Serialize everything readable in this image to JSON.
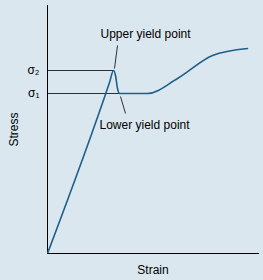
{
  "chart_data": {
    "type": "line",
    "x_label": "Strain",
    "y_label": "Stress",
    "x": [
      0,
      62,
      66,
      68,
      70,
      72,
      76,
      100,
      130,
      165,
      200
    ],
    "values": [
      0,
      171,
      183,
      178,
      165,
      160,
      160,
      160,
      175,
      198,
      205
    ],
    "color": "#1f5f8b",
    "xlim": [
      0,
      211
    ],
    "ylim": [
      0,
      248
    ],
    "xticks": [],
    "yticks": [
      {
        "value": 160,
        "label": "σ₁"
      },
      {
        "value": 183,
        "label": "σ₂"
      }
    ],
    "tick_labels": "y",
    "annotations": [
      {
        "text": "Upper yield point",
        "x": 66,
        "y": 183
      },
      {
        "text": "Lower yield point",
        "x": 72,
        "y": 160
      }
    ]
  }
}
